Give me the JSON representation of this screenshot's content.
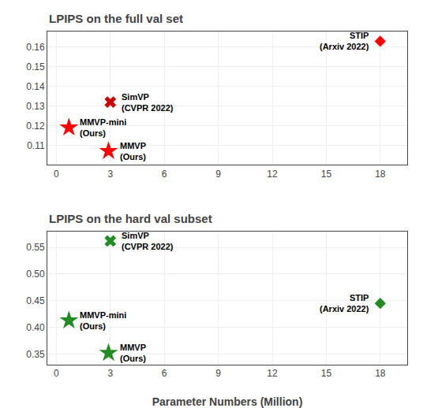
{
  "chart_data": [
    {
      "type": "scatter",
      "title": "LPIPS on the full val set",
      "series": [
        {
          "x": [
            18.0
          ],
          "values": [
            0.163
          ],
          "color": "#ff0000",
          "marker": "diamond",
          "label": "STIP\n(Arxiv 2022)"
        },
        {
          "x": [
            3.0
          ],
          "values": [
            0.132
          ],
          "color": "#cc0000",
          "marker": "x",
          "label": "SimVP\n(CVPR 2022)"
        },
        {
          "x": [
            0.7
          ],
          "values": [
            0.119
          ],
          "color": "#ff0000",
          "marker": "star",
          "label": "MMVP-mini\n(Ours)"
        },
        {
          "x": [
            2.9
          ],
          "values": [
            0.107
          ],
          "color": "#ff0000",
          "marker": "star",
          "label": "MMVP\n(Ours)"
        }
      ],
      "xlim": [
        -0.5,
        19.5
      ],
      "xticks": [
        0,
        3,
        6,
        9,
        12,
        15,
        18
      ],
      "ylim": [
        0.1,
        0.168
      ],
      "yticks": [
        0.11,
        0.12,
        0.13,
        0.14,
        0.15,
        0.16
      ],
      "grid": true
    },
    {
      "type": "scatter",
      "title": "LPIPS on the hard val subset",
      "xlabel": "Parameter Numbers (Million)",
      "series": [
        {
          "x": [
            18.0
          ],
          "values": [
            0.445
          ],
          "color": "#228B22",
          "marker": "diamond",
          "label": "STIP\n(Arxiv 2022)"
        },
        {
          "x": [
            3.0
          ],
          "values": [
            0.562
          ],
          "color": "#228B22",
          "marker": "x",
          "label": "SimVP\n(CVPR 2022)"
        },
        {
          "x": [
            0.7
          ],
          "values": [
            0.413
          ],
          "color": "#228B22",
          "marker": "star",
          "label": "MMVP-mini\n(Ours)"
        },
        {
          "x": [
            2.9
          ],
          "values": [
            0.352
          ],
          "color": "#228B22",
          "marker": "star",
          "label": "MMVP\n(Ours)"
        }
      ],
      "xlim": [
        -0.5,
        19.5
      ],
      "xticks": [
        0,
        3,
        6,
        9,
        12,
        15,
        18
      ],
      "ylim": [
        0.33,
        0.58
      ],
      "yticks": [
        0.35,
        {
          "value": 0.4,
          "label": "0.40"
        },
        0.45,
        {
          "value": 0.5,
          "label": "0.50"
        },
        0.55
      ],
      "grid": true
    }
  ]
}
